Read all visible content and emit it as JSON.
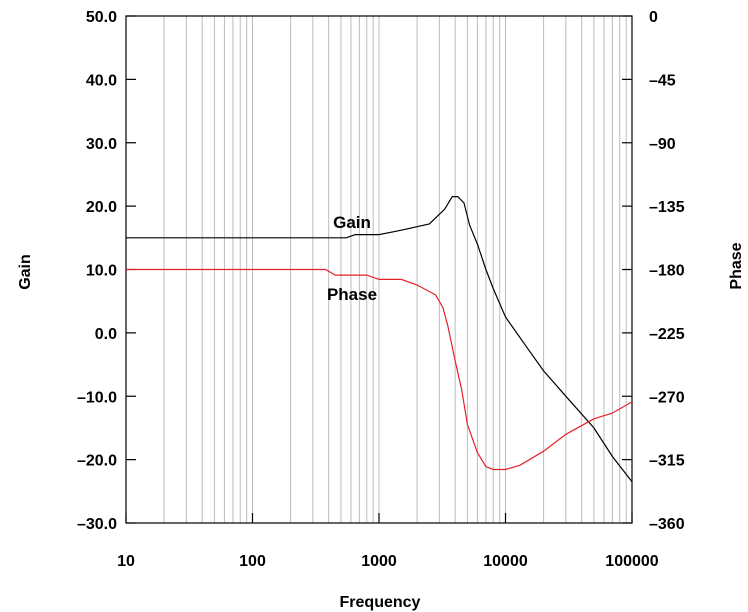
{
  "chart_data": {
    "type": "line",
    "xlabel": "Frequency",
    "ylabel_left": "Gain",
    "ylabel_right": "Phase",
    "x_scale": "log",
    "xlim": [
      10,
      100000
    ],
    "ylim_left": [
      -30,
      50
    ],
    "ylim_right": [
      -360,
      0
    ],
    "grid": true,
    "x_ticks": [
      "10",
      "100",
      "1000",
      "10000",
      "100000"
    ],
    "y_ticks_left": [
      "50.0",
      "40.0",
      "30.0",
      "20.0",
      "10.0",
      "0.0",
      "–10.0",
      "–20.0",
      "–30.0"
    ],
    "y_ticks_right": [
      "0",
      "–45",
      "–90",
      "–135",
      "–180",
      "–225",
      "–270",
      "–315",
      "–360"
    ],
    "series": [
      {
        "name": "Gain",
        "axis": "left",
        "color": "#000000",
        "x": [
          10,
          100,
          550,
          650,
          1000,
          1500,
          2500,
          3300,
          3800,
          4200,
          4700,
          5200,
          6000,
          7000,
          8000,
          10000,
          15000,
          20000,
          30000,
          50000,
          70000,
          100000
        ],
        "y": [
          15,
          15,
          15,
          15.5,
          15.5,
          16.2,
          17.2,
          19.5,
          21.5,
          21.5,
          20.5,
          17,
          14,
          10,
          7,
          2.5,
          -2.5,
          -6,
          -10,
          -15,
          -19.5,
          -23.5
        ]
      },
      {
        "name": "Phase",
        "axis": "right",
        "color": "#e8202a",
        "x": [
          10,
          100,
          380,
          450,
          800,
          1000,
          1500,
          2000,
          2800,
          3200,
          3500,
          4000,
          4500,
          5000,
          6000,
          7000,
          8000,
          10000,
          13000,
          20000,
          30000,
          50000,
          70000,
          100000
        ],
        "y": [
          -180,
          -180,
          -180,
          -184,
          -184,
          -187,
          -187,
          -191,
          -198,
          -207,
          -220,
          -245,
          -265,
          -290,
          -310,
          -320,
          -322,
          -322,
          -319,
          -309,
          -297,
          -286,
          -282,
          -274
        ]
      }
    ]
  }
}
